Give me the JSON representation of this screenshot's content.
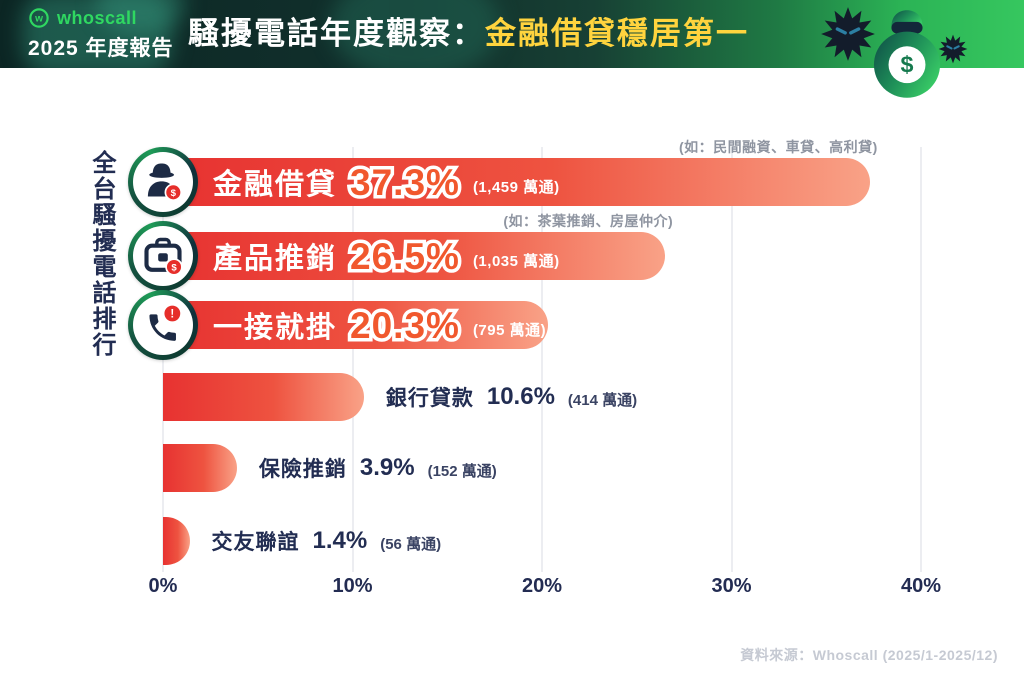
{
  "header": {
    "logo_mark": "w",
    "logo_text": "whoscall",
    "badge_text": "2025 年度報告",
    "title_prefix": "騷擾電話年度觀察：",
    "title_highlight": "金融借貸穩居第一"
  },
  "chart_data": {
    "type": "bar",
    "orientation": "horizontal",
    "axis_title_vertical": "全台騷擾電話排行",
    "x_ticks": [
      "0%",
      "10%",
      "20%",
      "30%",
      "40%"
    ],
    "x_tick_values": [
      0,
      10,
      20,
      30,
      40
    ],
    "xlim": [
      0,
      40
    ],
    "grid": true,
    "rows": [
      {
        "label": "金融借貸",
        "value": 37.3,
        "percent": "37.3%",
        "count": "(1,459 萬通)",
        "annotation": "(如：民間融資、車貸、高利貸)",
        "icon": "spy-dollar-icon",
        "label_position": "inside"
      },
      {
        "label": "產品推銷",
        "value": 26.5,
        "percent": "26.5%",
        "count": "(1,035 萬通)",
        "annotation": "(如：茶葉推銷、房屋仲介)",
        "icon": "briefcase-dollar-icon",
        "label_position": "inside"
      },
      {
        "label": "一接就掛",
        "value": 20.3,
        "percent": "20.3%",
        "count": "(795 萬通)",
        "icon": "phone-alert-icon",
        "label_position": "inside"
      },
      {
        "label": "銀行貸款",
        "value": 10.6,
        "percent": "10.6%",
        "count": "(414 萬通)",
        "label_position": "outside"
      },
      {
        "label": "保險推銷",
        "value": 3.9,
        "percent": "3.9%",
        "count": "(152 萬通)",
        "label_position": "outside"
      },
      {
        "label": "交友聯誼",
        "value": 1.4,
        "percent": "1.4%",
        "count": "(56 萬通)",
        "label_position": "outside"
      }
    ]
  },
  "icons": {
    "dollar_badge_glyph": "$",
    "alert_badge_glyph": "!"
  },
  "footer": {
    "source_text": "資料來源：Whoscall (2025/1-2025/12)"
  },
  "colors": {
    "bar_gradient_start": "#E73231",
    "bar_gradient_end": "#F9A287",
    "percent_orange": "#F1582D",
    "text_navy": "#222D52",
    "highlight_yellow": "#FFD43E",
    "brand_green": "#2FD861",
    "header_dark": "#0C2624",
    "header_green": "#36C75F",
    "badge_red": "#E62E2A"
  }
}
